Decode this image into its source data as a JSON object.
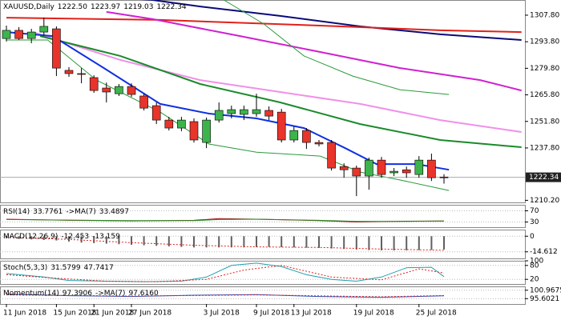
{
  "chart_data": [
    {
      "type": "candlestick",
      "title": "XAUUSD,Daily",
      "header_labels": [
        "1222.50",
        "1223.97",
        "1219.03",
        "1222.34"
      ],
      "categories": [
        "11 Jun 2018",
        null,
        null,
        null,
        "15 Jun 2018",
        null,
        null,
        "21 Jun 2018",
        null,
        null,
        "27 Jun 2018",
        null,
        null,
        null,
        null,
        null,
        "3 Jul 2018",
        null,
        null,
        null,
        "9 Jul 2018",
        null,
        null,
        "13 Jul 2018",
        null,
        null,
        null,
        null,
        "19 Jul 2018",
        null,
        null,
        null,
        null,
        "25 Jul 2018",
        null,
        null
      ],
      "open": [
        1295.5,
        1299.8,
        1295.5,
        1298.9,
        1300.6,
        1278.7,
        1277.0,
        1274.9,
        1269.4,
        1266.4,
        1270.2,
        1265.2,
        1260.1,
        1252.5,
        1248.3,
        1251.7,
        1240.7,
        1252.5,
        1255.9,
        1255.5,
        1255.9,
        1257.6,
        1256.7,
        1242.0,
        1247.0,
        1240.7,
        1240.7,
        1228.0,
        1227.2,
        1223.0,
        1231.4,
        1224.7,
        1226.3,
        1223.8,
        1231.4,
        1222.5
      ],
      "high": [
        1302.3,
        1301.5,
        1300.6,
        1306.5,
        1301.9,
        1280.4,
        1279.9,
        1276.1,
        1272.3,
        1271.5,
        1271.9,
        1266.4,
        1261.8,
        1254.2,
        1254.2,
        1253.4,
        1253.8,
        1261.8,
        1260.1,
        1260.1,
        1266.4,
        1259.7,
        1258.4,
        1249.1,
        1248.3,
        1242.0,
        1242.0,
        1229.7,
        1228.5,
        1232.7,
        1233.1,
        1227.2,
        1228.0,
        1233.5,
        1234.8,
        1223.97
      ],
      "low": [
        1293.9,
        1294.7,
        1293.0,
        1297.2,
        1275.7,
        1275.3,
        1271.9,
        1266.9,
        1261.8,
        1265.2,
        1264.7,
        1257.6,
        1250.4,
        1247.0,
        1246.6,
        1240.7,
        1237.7,
        1251.2,
        1253.4,
        1252.5,
        1254.2,
        1252.5,
        1240.7,
        1240.7,
        1237.3,
        1238.6,
        1225.9,
        1222.1,
        1212.4,
        1215.8,
        1222.1,
        1223.0,
        1222.1,
        1222.1,
        1220.4,
        1219.03
      ],
      "close": [
        1299.8,
        1295.5,
        1298.9,
        1301.9,
        1279.9,
        1277.0,
        1276.6,
        1268.1,
        1267.3,
        1270.2,
        1266.0,
        1258.8,
        1252.5,
        1248.3,
        1252.5,
        1242.0,
        1252.5,
        1257.6,
        1258.0,
        1258.0,
        1258.0,
        1254.6,
        1242.0,
        1247.0,
        1240.7,
        1239.9,
        1227.2,
        1226.3,
        1223.0,
        1231.4,
        1223.8,
        1225.5,
        1224.7,
        1231.4,
        1222.1,
        1222.34
      ],
      "up_color": "#3cb44b",
      "down_color": "#e8342a",
      "series": [
        {
          "color": "#0a0a78",
          "width": 2,
          "x": [
            9,
            11.7,
            15.5,
            21.9,
            28.3,
            34.7,
            41.2
          ],
          "values": [
            1317.0,
            1315.8,
            1312.4,
            1307.4,
            1301.9,
            1297.7,
            1294.7
          ]
        },
        {
          "color": "#e0201a",
          "width": 2,
          "x": [
            0,
            12.3,
            25.1,
            34.7,
            41.2
          ],
          "values": [
            1306.5,
            1305.3,
            1302.3,
            1299.8,
            1298.9
          ]
        },
        {
          "color": "#d020d0",
          "width": 2,
          "x": [
            8,
            11.7,
            18.7,
            25.1,
            31.5,
            37.9,
            41.2
          ],
          "values": [
            1309.5,
            1305.7,
            1296.8,
            1288.4,
            1279.9,
            1273.6,
            1268.1
          ]
        },
        {
          "color": "#f090e8",
          "width": 2,
          "x": [
            2.1,
            9.1,
            15.5,
            21.9,
            28.3,
            34.7,
            41.2
          ],
          "values": [
            1298.9,
            1284.2,
            1273.6,
            1267.3,
            1261.0,
            1252.5,
            1246.2
          ]
        },
        {
          "color": "#1a8a2a",
          "width": 2,
          "x": [
            2.7,
            9.1,
            15.5,
            21.9,
            28.3,
            34.7,
            41.2
          ],
          "values": [
            1296.8,
            1286.3,
            1271.5,
            1261.8,
            1250.4,
            1242.0,
            1238.2
          ]
        },
        {
          "color": "#1030e0",
          "width": 2,
          "x": [
            0,
            3.7,
            7.8,
            12.3,
            16.2,
            20,
            23.8,
            27.1,
            29.6,
            32.8,
            35.4
          ],
          "values": [
            1298.9,
            1296.8,
            1279.9,
            1261.0,
            1255.9,
            1253.4,
            1248.3,
            1237.7,
            1229.3,
            1229.3,
            1226.3
          ]
        },
        {
          "color": "#2a9a3a",
          "width": 1,
          "x": [
            17.4,
            20.6,
            23.8,
            27.7,
            31.5,
            35.4
          ],
          "values": [
            1315.8,
            1303.1,
            1286.3,
            1275.7,
            1268.5,
            1266.0
          ]
        },
        {
          "color": "#2a9a3a",
          "width": 1,
          "x": [
            0,
            3.3,
            7.2,
            12.3,
            16.2,
            20,
            25.1,
            28.3,
            31.5,
            35.4
          ],
          "values": [
            1294.7,
            1294.7,
            1273.6,
            1256.7,
            1239.9,
            1235.6,
            1233.5,
            1225.1,
            1220.9,
            1215.4
          ]
        }
      ],
      "last_price": 1222.34,
      "ylim": [
        1209.1,
        1315.8
      ],
      "yticks": [
        {
          "value": 1307.8,
          "label": "1307.80"
        },
        {
          "value": 1293.8,
          "label": "1293.80"
        },
        {
          "value": 1279.8,
          "label": "1279.80"
        },
        {
          "value": 1265.8,
          "label": "1265.80"
        },
        {
          "value": 1251.8,
          "label": "1251.80"
        },
        {
          "value": 1237.8,
          "label": "1237.80"
        },
        {
          "value": 1210.2,
          "label": "1210.20"
        }
      ]
    },
    {
      "type": "line",
      "title": "RSI(14)",
      "series": [
        {
          "color": "#a01010",
          "style": "solid",
          "x": [
            0,
            5,
            10,
            15,
            17,
            20,
            25,
            28,
            32,
            35
          ],
          "values": [
            40,
            36,
            34,
            36,
            42,
            40,
            35,
            30,
            33,
            33.7761
          ]
        },
        {
          "name": "->MA(7)",
          "color": "#208a20",
          "style": "solid",
          "x": [
            0,
            5,
            10,
            15,
            17,
            20,
            25,
            28,
            32,
            35
          ],
          "values": [
            39,
            37,
            35,
            35,
            39,
            40,
            36,
            32,
            32,
            33.4897
          ]
        }
      ],
      "ylim": [
        11.5,
        91.5
      ],
      "yticks": [
        70,
        30
      ]
    },
    {
      "type": "macd",
      "title": "MACD(12,26,9)",
      "series": [
        {
          "color": "#606060",
          "style": "bar",
          "values": [
            -2,
            -2.5,
            -3,
            -3.5,
            -4,
            -5,
            -6,
            -6.5,
            -7,
            -7.5,
            -8,
            -8.5,
            -9,
            -9.5,
            -10,
            -10.5,
            -10.5,
            -10.5,
            -10.5,
            -10.5,
            -10.2,
            -10,
            -10.3,
            -10.5,
            -10.8,
            -11,
            -11.5,
            -12,
            -12.5,
            -13,
            -13.2,
            -13.3,
            -13.2,
            -13,
            -12.8,
            -12.453
          ]
        },
        {
          "color": "#e0201a",
          "style": "dotted",
          "x": [
            0,
            5,
            10,
            15,
            20,
            25,
            30,
            35
          ],
          "values": [
            -1,
            -3,
            -6,
            -8.5,
            -10,
            -10.5,
            -12,
            -13.159
          ]
        }
      ],
      "ylim": [
        -20.8,
        6.2
      ],
      "yticks": [
        0,
        -14.612
      ]
    },
    {
      "type": "line",
      "title": "Stoch(5,3,3)",
      "series": [
        {
          "color": "#20a0b0",
          "style": "solid",
          "x": [
            0,
            3,
            5,
            8,
            11,
            14,
            16,
            18,
            20,
            22,
            24,
            26,
            28,
            30,
            32,
            34,
            35
          ],
          "values": [
            45,
            30,
            15,
            12,
            10,
            12,
            30,
            80,
            90,
            75,
            40,
            20,
            12,
            30,
            70,
            72,
            31.5799
          ]
        },
        {
          "color": "#e0201a",
          "style": "dotted",
          "x": [
            0,
            4,
            8,
            12,
            16,
            19,
            22,
            26,
            30,
            33,
            35
          ],
          "values": [
            40,
            25,
            12,
            10,
            20,
            60,
            80,
            30,
            18,
            65,
            47.7417
          ]
        }
      ],
      "ylim": [
        0,
        100
      ],
      "yticks": [
        100,
        80,
        20
      ]
    },
    {
      "type": "line",
      "title": "Momentum(14)",
      "series": [
        {
          "color": "#2050c0",
          "style": "solid",
          "x": [
            0,
            5,
            10,
            15,
            20,
            25,
            30,
            35
          ],
          "values": [
            98.5,
            97.5,
            97,
            97.8,
            98.2,
            97,
            96.5,
            97.3906
          ]
        },
        {
          "name": "->MA(7)",
          "color": "#e0201a",
          "style": "dotted",
          "x": [
            0,
            5,
            10,
            15,
            20,
            25,
            30,
            35
          ],
          "values": [
            98,
            97.6,
            97.3,
            97.6,
            98,
            97.4,
            96.8,
            97.616
          ],
          "value_labels": [
            null,
            null,
            null,
            null,
            null,
            null,
            null,
            "97.6160"
          ]
        }
      ],
      "ylim": [
        92.2,
        103.4
      ],
      "yticks": [
        100.9675,
        95.6021
      ]
    }
  ]
}
